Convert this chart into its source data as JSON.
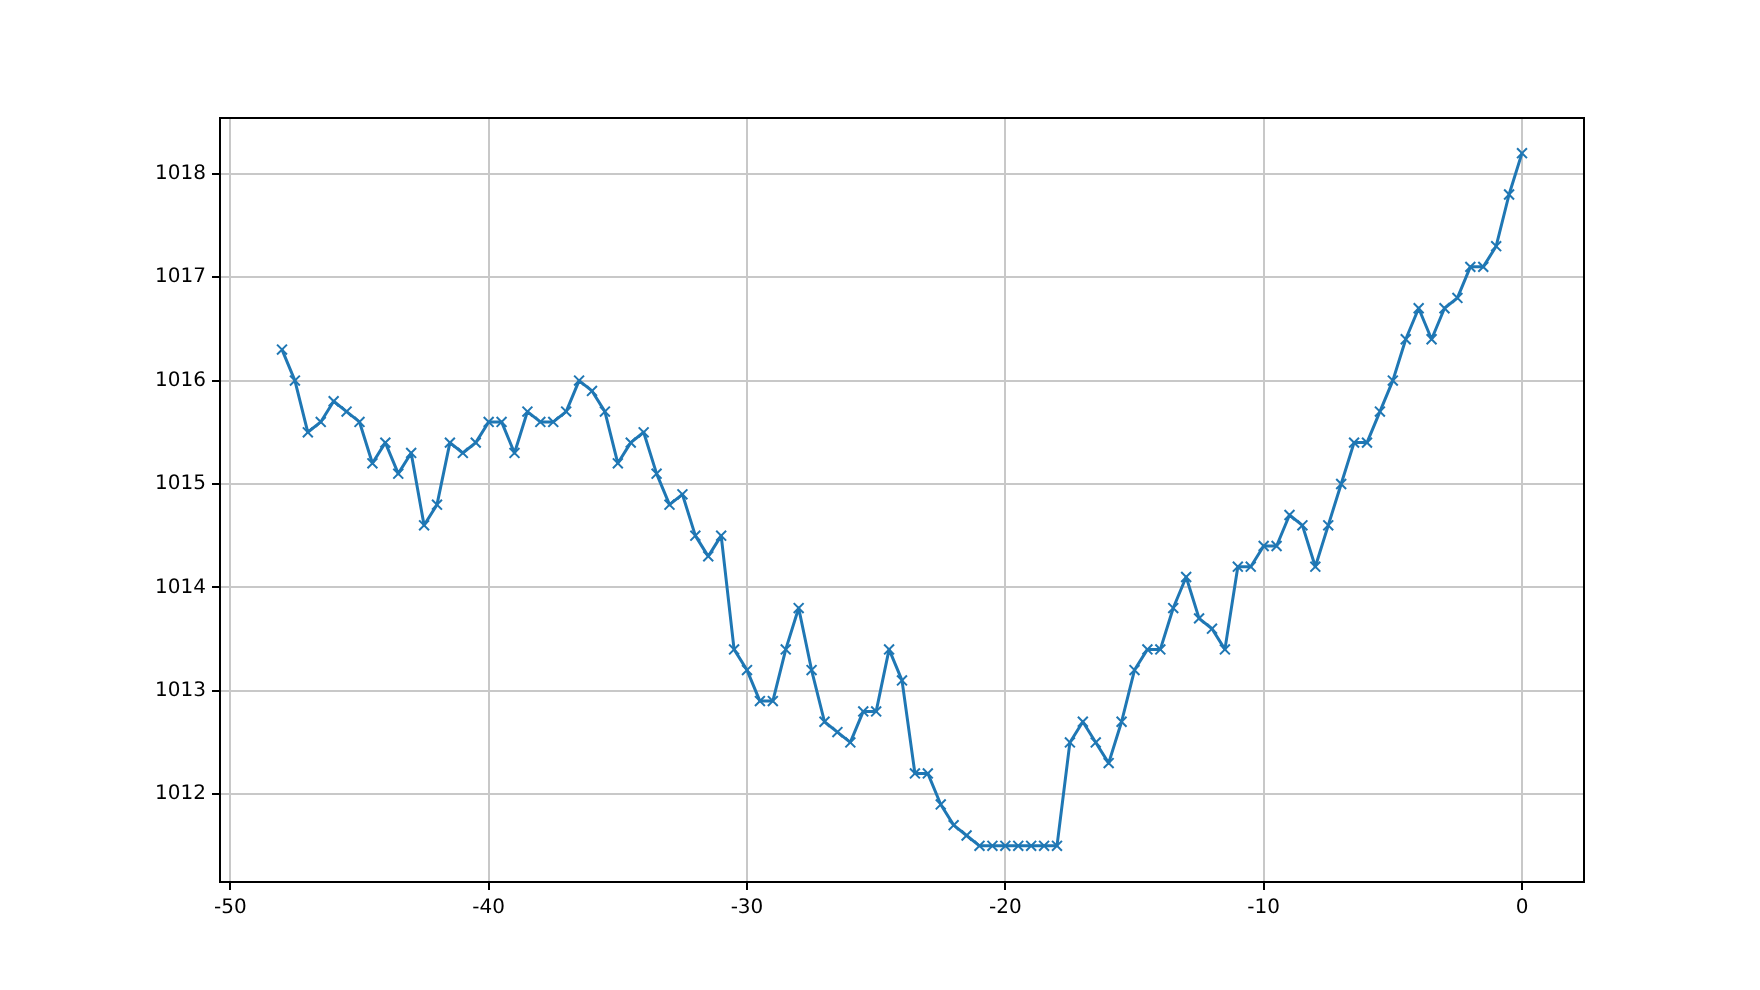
{
  "chart_data": {
    "type": "line",
    "x": [
      -48,
      -47.5,
      -47,
      -46.5,
      -46,
      -45.5,
      -45,
      -44.5,
      -44,
      -43.5,
      -43,
      -42.5,
      -42,
      -41.5,
      -41,
      -40.5,
      -40,
      -39.5,
      -39,
      -38.5,
      -38,
      -37.5,
      -37,
      -36.5,
      -36,
      -35.5,
      -35,
      -34.5,
      -34,
      -33.5,
      -33,
      -32.5,
      -32,
      -31.5,
      -31,
      -30.5,
      -30,
      -29.5,
      -29,
      -28.5,
      -28,
      -27.5,
      -27,
      -26.5,
      -26,
      -25.5,
      -25,
      -24.5,
      -24,
      -23.5,
      -23,
      -22.5,
      -22,
      -21.5,
      -21,
      -20.5,
      -20,
      -19.5,
      -19,
      -18.5,
      -18,
      -17.5,
      -17,
      -16.5,
      -16,
      -15.5,
      -15,
      -14.5,
      -14,
      -13.5,
      -13,
      -12.5,
      -12,
      -11.5,
      -11,
      -10.5,
      -10,
      -9.5,
      -9,
      -8.5,
      -8,
      -7.5,
      -7,
      -6.5,
      -6,
      -5.5,
      -5,
      -4.5,
      -4,
      -3.5,
      -3,
      -2.5,
      -2,
      -1.5,
      -1,
      -0.5,
      0
    ],
    "series": [
      {
        "color": "#1f77b4",
        "values": [
          1016.3,
          1016.0,
          1015.5,
          1015.6,
          1015.8,
          1015.7,
          1015.6,
          1015.2,
          1015.4,
          1015.1,
          1015.3,
          1014.6,
          1014.8,
          1015.4,
          1015.3,
          1015.4,
          1015.6,
          1015.6,
          1015.3,
          1015.7,
          1015.6,
          1015.6,
          1015.7,
          1016.0,
          1015.9,
          1015.7,
          1015.2,
          1015.4,
          1015.5,
          1015.1,
          1014.8,
          1014.9,
          1014.5,
          1014.3,
          1014.5,
          1013.4,
          1013.2,
          1012.9,
          1012.9,
          1013.4,
          1013.8,
          1013.2,
          1012.7,
          1012.6,
          1012.5,
          1012.8,
          1012.8,
          1013.4,
          1013.1,
          1012.2,
          1012.2,
          1011.9,
          1011.7,
          1011.6,
          1011.5,
          1011.5,
          1011.5,
          1011.5,
          1011.5,
          1011.5,
          1011.5,
          1012.5,
          1012.7,
          1012.5,
          1012.3,
          1012.7,
          1013.2,
          1013.4,
          1013.4,
          1013.8,
          1014.1,
          1013.7,
          1013.6,
          1013.4,
          1014.2,
          1014.2,
          1014.4,
          1014.4,
          1014.7,
          1014.6,
          1014.2,
          1014.6,
          1015.0,
          1015.4,
          1015.4,
          1015.7,
          1016.0,
          1016.4,
          1016.7,
          1016.4,
          1016.7,
          1016.8,
          1017.1,
          1017.1,
          1017.3,
          1017.8,
          1018.2
        ]
      }
    ],
    "xlim": [
      -50.4,
      2.4
    ],
    "ylim": [
      1011.15,
      1018.54
    ],
    "xticks": [
      -50,
      -40,
      -30,
      -20,
      -10,
      0
    ],
    "yticks": [
      1012,
      1013,
      1014,
      1015,
      1016,
      1017,
      1018
    ],
    "grid": true,
    "marker": "cross",
    "line_style": "solid"
  }
}
